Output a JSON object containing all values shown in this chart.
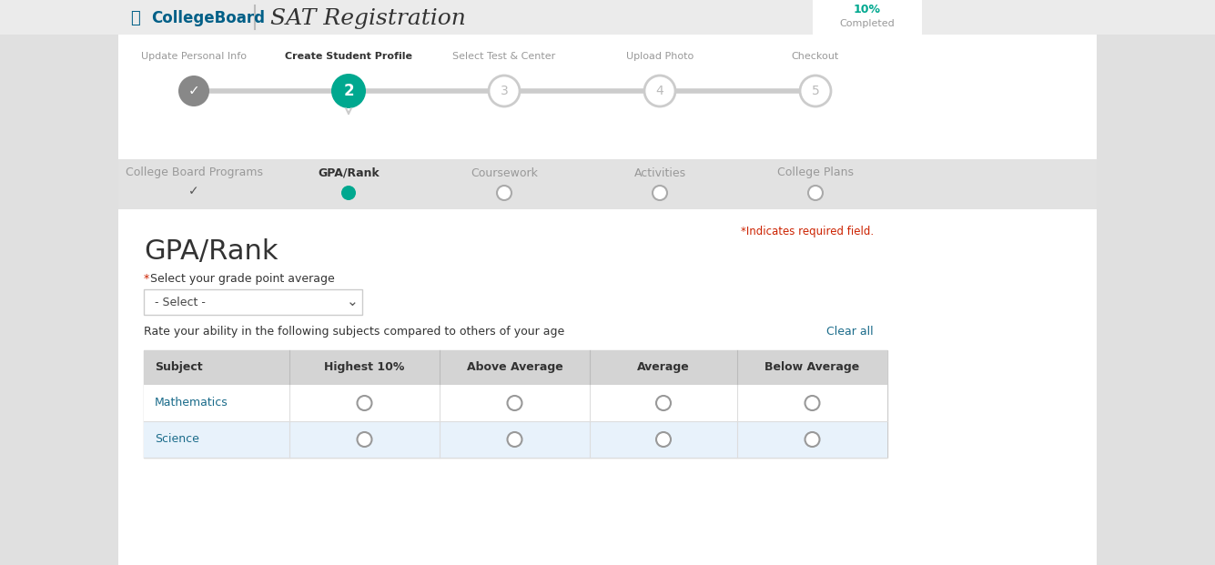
{
  "bg_color": "#e0e0e0",
  "white": "#ffffff",
  "teal": "#00a88f",
  "gray_circle": "#888888",
  "gray_text": "#999999",
  "dark_text": "#333333",
  "light_blue_row": "#e8f2fb",
  "table_header_bg": "#d4d4d4",
  "red_text": "#cc2200",
  "blue_link": "#1a6b8a",
  "collegeboard_blue": "#005f87",
  "title": "SAT Registration",
  "percent_text": "10%",
  "completed_text": "Completed",
  "nav_steps": [
    "Update Personal Info",
    "Create Student Profile",
    "Select Test & Center",
    "Upload Photo",
    "Checkout"
  ],
  "sub_steps": [
    "College Board Programs",
    "GPA/Rank",
    "Coursework",
    "Activities",
    "College Plans"
  ],
  "section_title": "GPA/Rank",
  "required_note": "*Indicates required field.",
  "gpa_label_asterisk": "*",
  "gpa_label_text": "Select your grade point average",
  "dropdown_text": "- Select -",
  "rate_label": "Rate your ability in the following subjects compared to others of your age",
  "clear_all": "Clear all",
  "table_headers": [
    "Subject",
    "Highest 10%",
    "Above Average",
    "Average",
    "Below Average"
  ],
  "table_rows": [
    {
      "subject": "Mathematics",
      "highlight": false
    },
    {
      "subject": "Science",
      "highlight": true
    }
  ]
}
